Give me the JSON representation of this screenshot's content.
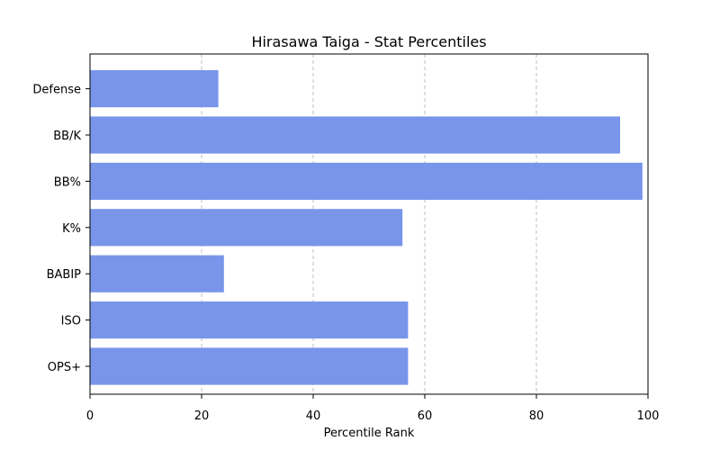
{
  "chart_data": {
    "type": "bar",
    "orientation": "horizontal",
    "title": "Hirasawa Taiga - Stat Percentiles",
    "xlabel": "Percentile Rank",
    "ylabel": "",
    "categories": [
      "OPS+",
      "ISO",
      "BABIP",
      "K%",
      "BB%",
      "BB/K",
      "Defense"
    ],
    "values": [
      57,
      57,
      24,
      56,
      99,
      95,
      23
    ],
    "xlim": [
      0,
      100
    ],
    "xticks": [
      0,
      20,
      40,
      60,
      80,
      100
    ],
    "grid": "x-dashed",
    "bar_color": "#7895ea"
  }
}
